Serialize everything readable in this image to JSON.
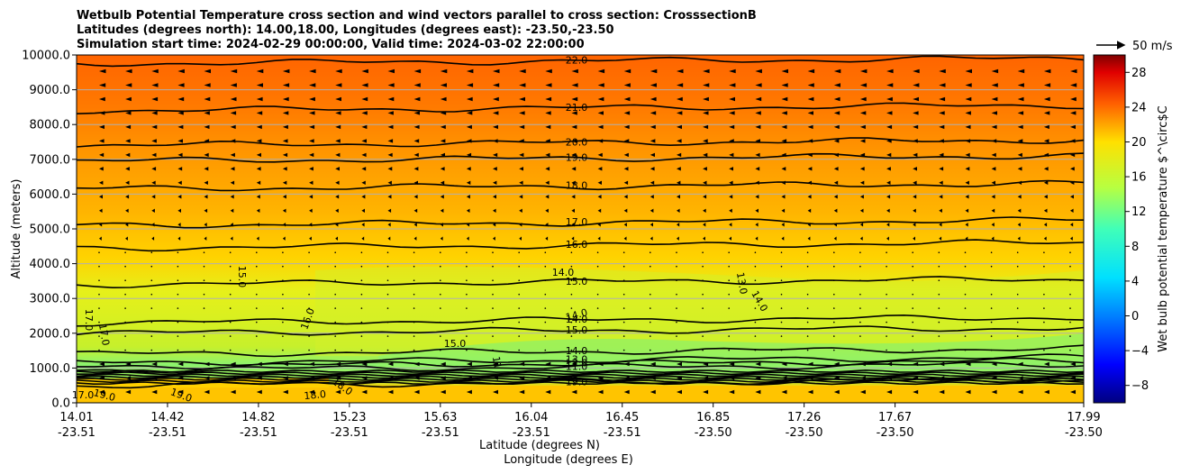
{
  "chart_data": {
    "type": "heatmap",
    "title_lines": [
      "Wetbulb Potential Temperature cross section and wind vectors parallel to cross section: CrosssectionB",
      "Latitudes (degrees north): 14.00,18.00, Longitudes (degrees east): -23.50,-23.50",
      "Simulation start time: 2024-02-29 00:00:00, Valid time: 2024-03-02 22:00:00"
    ],
    "xlabel_lat": "Latitude (degrees N)",
    "xlabel_lon": "Longitude (degrees E)",
    "ylabel": "Altitude (meters)",
    "colorbar_label": "Wet bulb potential temperature $^\\circ$C",
    "x_ticks": [
      {
        "lat": "14.01",
        "lon": "-23.51"
      },
      {
        "lat": "14.42",
        "lon": "-23.51"
      },
      {
        "lat": "14.82",
        "lon": "-23.51"
      },
      {
        "lat": "15.23",
        "lon": "-23.51"
      },
      {
        "lat": "15.63",
        "lon": "-23.51"
      },
      {
        "lat": "16.04",
        "lon": "-23.51"
      },
      {
        "lat": "16.45",
        "lon": "-23.51"
      },
      {
        "lat": "16.85",
        "lon": "-23.50"
      },
      {
        "lat": "17.26",
        "lon": "-23.50"
      },
      {
        "lat": "17.67",
        "lon": "-23.50"
      },
      {
        "lat": "17.99",
        "lon": "-23.50"
      }
    ],
    "y_ticks": [
      "0.0",
      "1000.0",
      "2000.0",
      "3000.0",
      "4000.0",
      "5000.0",
      "6000.0",
      "7000.0",
      "8000.0",
      "9000.0",
      "10000.0"
    ],
    "ylim": [
      0,
      10000
    ],
    "colorbar_ticks": [
      "−8",
      "−4",
      "0",
      "4",
      "8",
      "12",
      "16",
      "20",
      "24",
      "28"
    ],
    "colorbar_range": [
      -10,
      30
    ],
    "quiver_key_label": "50 m/s",
    "grid": "horizontal lines at y ticks",
    "contours": [
      {
        "label": "22.0",
        "altitude": 9750
      },
      {
        "label": "21.0",
        "altitude": 8400
      },
      {
        "label": "20.0",
        "altitude": 7400
      },
      {
        "label": "19.0",
        "altitude": 6950
      },
      {
        "label": "18.0",
        "altitude": 6150
      },
      {
        "label": "17.0",
        "altitude": 5100
      },
      {
        "label": "16.0",
        "altitude": 4450
      },
      {
        "label": "15.0",
        "altitude": 3400
      },
      {
        "label": "14.0",
        "altitude": 2300
      },
      {
        "label": "15.0",
        "altitude": 2000
      },
      {
        "label": "14.0",
        "altitude": 1400
      },
      {
        "label": "13.0",
        "altitude": 1150
      },
      {
        "label": "12.0",
        "altitude": 1050
      },
      {
        "label": "11.0",
        "altitude": 950
      },
      {
        "label": "19.0",
        "altitude": 500
      }
    ],
    "inline_labels": [
      "15.0",
      "17.0",
      "17.0",
      "16.0",
      "14.0",
      "14.0",
      "13.0",
      "14.0",
      "15.0",
      "11",
      "19.0",
      "19.0",
      "18.0",
      "18.0",
      "17.0"
    ],
    "field_colors": {
      "top": "#ff6a00",
      "upper": "#ff9a00",
      "mid": "#ffc800",
      "low": "#e8f014",
      "minimum": "#8cf26e",
      "surface": "#ffcc00"
    }
  }
}
